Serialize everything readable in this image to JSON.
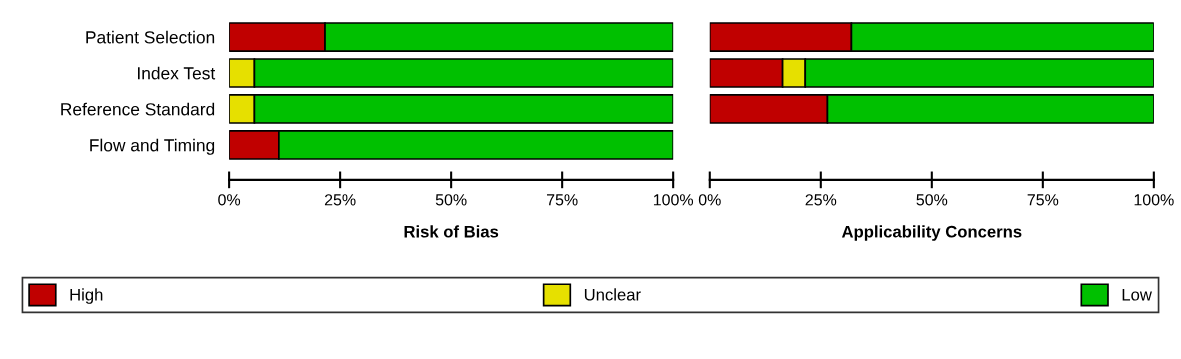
{
  "chart_data": [
    {
      "type": "bar",
      "orientation": "horizontal",
      "stacked": true,
      "xlabel": "Risk of Bias",
      "categories": [
        "Patient Selection",
        "Index Test",
        "Reference Standard",
        "Flow and Timing"
      ],
      "series": [
        {
          "name": "High",
          "color": "#c00000",
          "values": [
            21.6,
            0,
            0,
            11.2
          ]
        },
        {
          "name": "Unclear",
          "color": "#e6e000",
          "values": [
            0,
            5.7,
            5.7,
            0
          ]
        },
        {
          "name": "Low",
          "color": "#00c000",
          "values": [
            78.4,
            94.3,
            94.3,
            88.8
          ]
        }
      ],
      "xlim": [
        0,
        100
      ],
      "xticks": [
        {
          "value": 0,
          "label": "0%"
        },
        {
          "value": 25,
          "label": "25%"
        },
        {
          "value": 50,
          "label": "50%"
        },
        {
          "value": 75,
          "label": "75%"
        },
        {
          "value": 100,
          "label": "100%"
        }
      ],
      "legend": "bottom",
      "grid": false
    },
    {
      "type": "bar",
      "orientation": "horizontal",
      "stacked": true,
      "xlabel": "Applicability Concerns",
      "categories": [
        null,
        null,
        null
      ],
      "series": [
        {
          "color": "#c00000",
          "values": [
            31.9,
            16.4,
            26.5
          ]
        },
        {
          "color": "#e6e000",
          "values": [
            0,
            5.1,
            0
          ]
        },
        {
          "color": "#00c000",
          "values": [
            68.1,
            78.5,
            73.5
          ]
        }
      ],
      "xlim": [
        0,
        100
      ],
      "xticks": [
        {
          "value": 0,
          "label": "0%"
        },
        {
          "value": 25,
          "label": "25%"
        },
        {
          "value": 50,
          "label": "50%"
        },
        {
          "value": 75,
          "label": "75%"
        },
        {
          "value": 100,
          "label": "100%"
        }
      ],
      "tick_labels": "x",
      "grid": false
    }
  ]
}
